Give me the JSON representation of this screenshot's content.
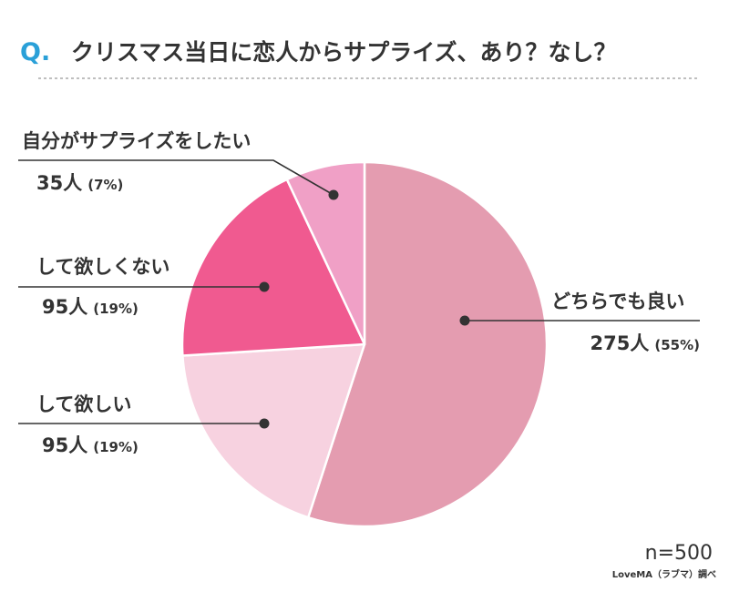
{
  "header": {
    "q_mark": "Q.",
    "question": "クリスマス当日に恋人からサプライズ、あり？なし？"
  },
  "footer": {
    "n": "n=500",
    "source": "LoveMA（ラブマ）調べ"
  },
  "colors": {
    "q_mark": "#2aa0d8",
    "text": "#333333",
    "leader": "#333333",
    "divider": "#aaaaaa",
    "separator": "#ffffff"
  },
  "chart_data": {
    "type": "pie",
    "title": "クリスマス当日に恋人からサプライズ、あり？なし？",
    "total": 500,
    "start_angle_deg": 0,
    "direction": "clockwise",
    "slices": [
      {
        "label": "どちらでも良い",
        "count": 275,
        "count_text": "275人",
        "percent": 55,
        "percent_text": "(55%)",
        "color": "#e49cb0"
      },
      {
        "label": "して欲しい",
        "count": 95,
        "count_text": "95人",
        "percent": 19,
        "percent_text": "(19%)",
        "color": "#f7d2e0"
      },
      {
        "label": "して欲しくない",
        "count": 95,
        "count_text": "95人",
        "percent": 19,
        "percent_text": "(19%)",
        "color": "#f05a90"
      },
      {
        "label": "自分がサプライズをしたい",
        "count": 35,
        "count_text": "35人",
        "percent": 7,
        "percent_text": "(7%)",
        "color": "#f0a0c6"
      }
    ]
  }
}
